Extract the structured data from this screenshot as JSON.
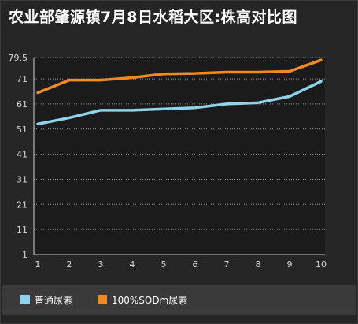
{
  "title": "农业部肇源镇7月8日水稻大区:株高对比图",
  "colors": {
    "series1": "#8fd3ea",
    "series2": "#f08a24",
    "grid": "#9a9a9a",
    "axis": "#d0d0d0",
    "plot_bg": "#1b1b1b"
  },
  "chart_data": {
    "type": "line",
    "title": "农业部肇源镇7月8日水稻大区:株高对比图",
    "xlabel": "",
    "ylabel": "",
    "x": [
      1,
      2,
      3,
      4,
      5,
      6,
      7,
      8,
      9,
      10
    ],
    "x_tick_labels": [
      "1",
      "2",
      "3",
      "4",
      "5",
      "6",
      "7",
      "8",
      "9",
      "10"
    ],
    "y_ticks": [
      1,
      11,
      21,
      31,
      41,
      51,
      61,
      71,
      79.5
    ],
    "y_tick_labels": [
      "1",
      "11",
      "21",
      "31",
      "41",
      "51",
      "61",
      "71",
      "79.5"
    ],
    "ylim": [
      1,
      79.5
    ],
    "grid": true,
    "legend_position": "bottom",
    "series": [
      {
        "name": "普通尿素",
        "values": [
          53,
          55.5,
          58.5,
          58.5,
          59,
          59.5,
          61,
          61.5,
          64,
          70
        ],
        "color": "#8fd3ea"
      },
      {
        "name": "100%SODm尿素",
        "values": [
          65.5,
          70.5,
          70.5,
          71.5,
          73,
          73.2,
          73.7,
          73.7,
          74,
          78.5
        ],
        "color": "#f08a24"
      }
    ]
  }
}
